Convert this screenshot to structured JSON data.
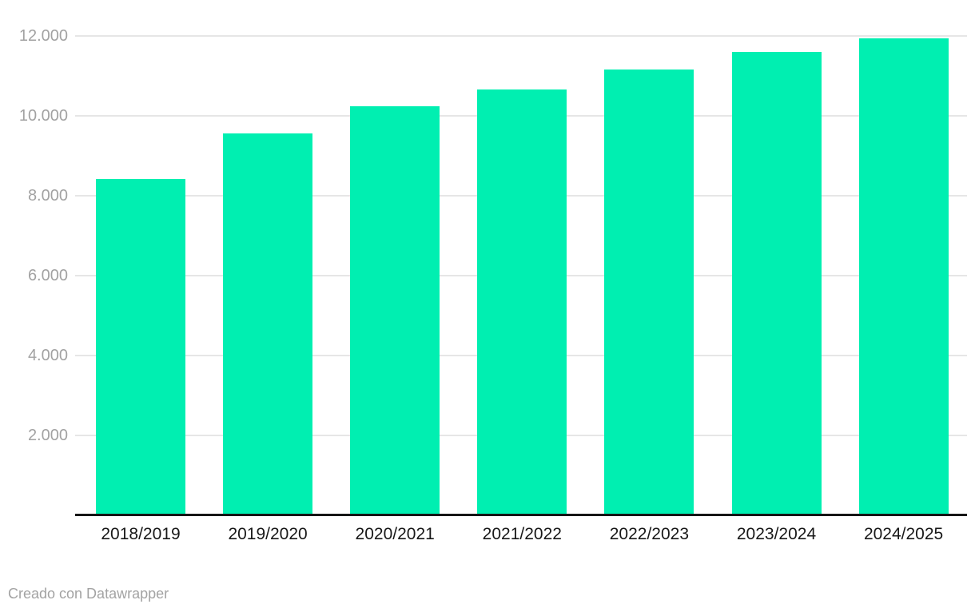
{
  "footer": {
    "text": "Creado con Datawrapper"
  },
  "chart_data": {
    "type": "bar",
    "title": "",
    "xlabel": "",
    "ylabel": "",
    "categories": [
      "2018/2019",
      "2019/2020",
      "2020/2021",
      "2021/2022",
      "2022/2023",
      "2023/2024",
      "2024/2025"
    ],
    "values": [
      8420,
      9560,
      10240,
      10660,
      11160,
      11600,
      11940
    ],
    "ylim": [
      0,
      12000
    ],
    "yticks": [
      {
        "v": 2000,
        "label": "2.000"
      },
      {
        "v": 4000,
        "label": "4.000"
      },
      {
        "v": 6000,
        "label": "6.000"
      },
      {
        "v": 8000,
        "label": "8.000"
      },
      {
        "v": 10000,
        "label": "10.000"
      },
      {
        "v": 12000,
        "label": "12.000"
      }
    ],
    "grid": true,
    "legend": "none",
    "number_format": "thousands with dot separator (es)",
    "colors": {
      "bar": "#00efb1",
      "gridline": "#e6e6e6",
      "axis_line": "#161616",
      "y_tick_label": "#a2a2a2",
      "x_tick_label": "#181818",
      "attribution": "#a3a3a3"
    }
  }
}
